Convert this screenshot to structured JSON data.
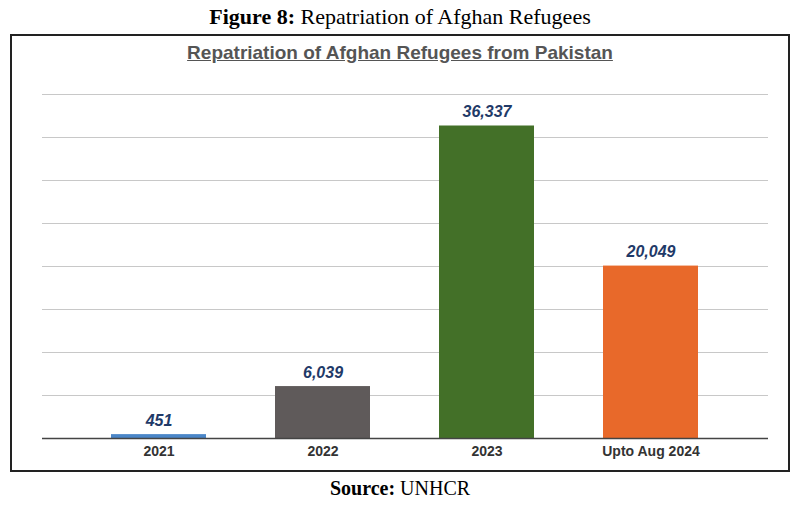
{
  "chart_data": {
    "type": "bar",
    "figure_title": "Figure 8: Repatriation of Afghan Refugees",
    "title": "Repatriation of Afghan Refugees from Pakistan",
    "source": "Source: UNHCR",
    "categories": [
      "2021",
      "2022",
      "2023",
      "Upto Aug 2024"
    ],
    "values": [
      451,
      6039,
      36337,
      20049
    ],
    "value_labels": [
      "451",
      "6,039",
      "36,337",
      "20,049"
    ],
    "colors": [
      "#4a86c8",
      "#5f5a5a",
      "#437028",
      "#e8692a"
    ],
    "ylim": [
      0,
      40000
    ],
    "yticks": [
      0,
      5000,
      10000,
      15000,
      20000,
      25000,
      30000,
      35000,
      40000
    ],
    "grid": true,
    "data_labels": true,
    "tick_labels": "x"
  }
}
